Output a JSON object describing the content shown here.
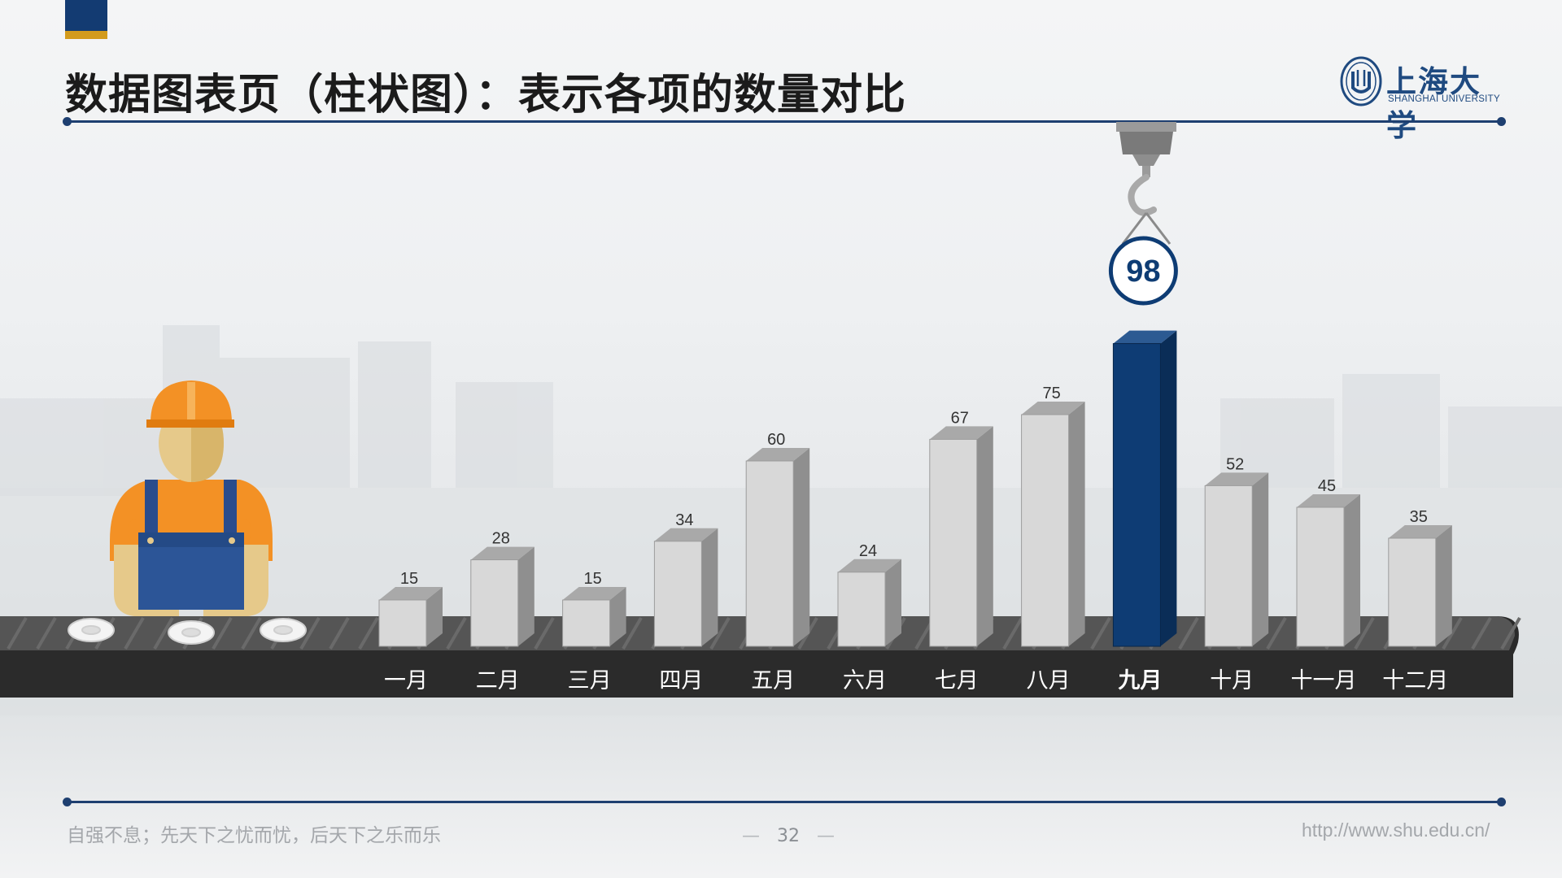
{
  "header": {
    "title": "数据图表页（柱状图）：表示各项的数量对比"
  },
  "logo": {
    "name_cn": "上海大学",
    "name_en": "SHANGHAI UNIVERSITY"
  },
  "footer": {
    "motto": "自强不息；先天下之忧而忧，后天下之乐而乐",
    "page_number": "32",
    "url": "http://www.shu.edu.cn/"
  },
  "colors": {
    "accent_navy": "#133b72",
    "accent_gold": "#d39b1c",
    "bar_gray": "#d8d8d8",
    "bar_highlight": "#0e3c74",
    "belt": "#2b2b2b"
  },
  "chart_data": {
    "type": "bar",
    "categories": [
      "一月",
      "二月",
      "三月",
      "四月",
      "五月",
      "六月",
      "七月",
      "八月",
      "九月",
      "十月",
      "十一月",
      "十二月"
    ],
    "values": [
      15,
      28,
      15,
      34,
      60,
      24,
      67,
      75,
      98,
      52,
      45,
      35
    ],
    "highlight_index": 8,
    "highlight_label": "98",
    "ylim": [
      0,
      100
    ],
    "grid": false,
    "legend": "none"
  }
}
